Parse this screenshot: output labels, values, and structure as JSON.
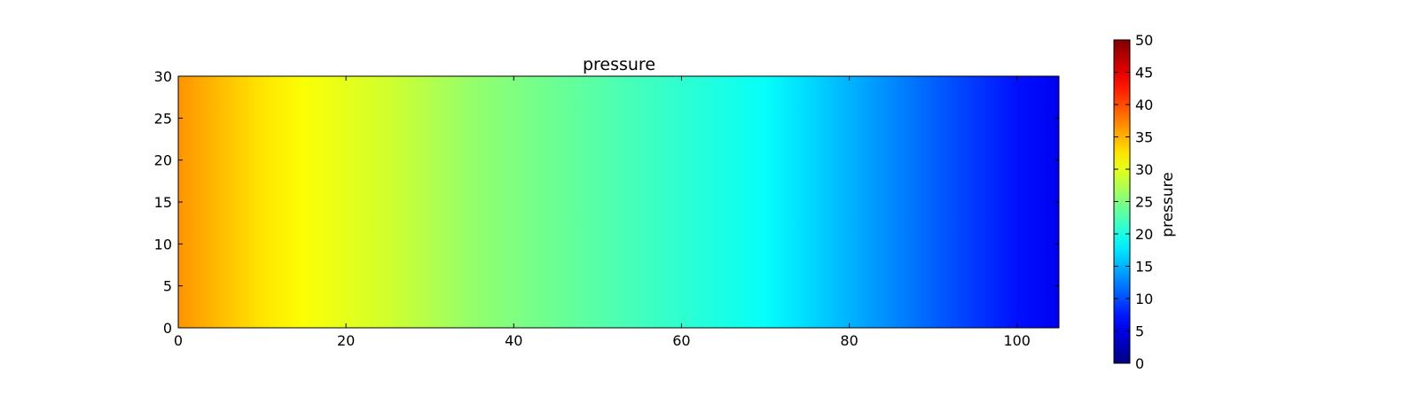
{
  "chart_data": {
    "type": "heatmap",
    "title": "pressure",
    "xlabel": "",
    "ylabel": "",
    "xlim": [
      0,
      105
    ],
    "ylim": [
      0,
      30
    ],
    "x_ticks": [
      0,
      20,
      40,
      60,
      80,
      100
    ],
    "y_ticks": [
      0,
      5,
      10,
      15,
      20,
      25,
      30
    ],
    "colormap": "jet",
    "colorbar": {
      "label": "pressure",
      "range": [
        0,
        50
      ],
      "ticks": [
        0,
        5,
        10,
        15,
        20,
        25,
        30,
        35,
        40,
        45,
        50
      ]
    },
    "field_profile": {
      "description_axis": "x",
      "x": [
        0,
        5,
        10,
        15,
        20,
        25,
        30,
        35,
        40,
        45,
        50,
        55,
        60,
        65,
        70,
        75,
        80,
        85,
        90,
        95,
        100,
        105
      ],
      "value": [
        36.5,
        34.5,
        32.5,
        31.0,
        30.0,
        29.0,
        27.5,
        26.0,
        25.0,
        24.0,
        23.0,
        22.0,
        21.0,
        20.0,
        19.0,
        17.0,
        15.0,
        13.0,
        11.0,
        9.0,
        7.0,
        5.5
      ]
    },
    "colors": {
      "frame": "#000000",
      "background": "#ffffff"
    }
  }
}
